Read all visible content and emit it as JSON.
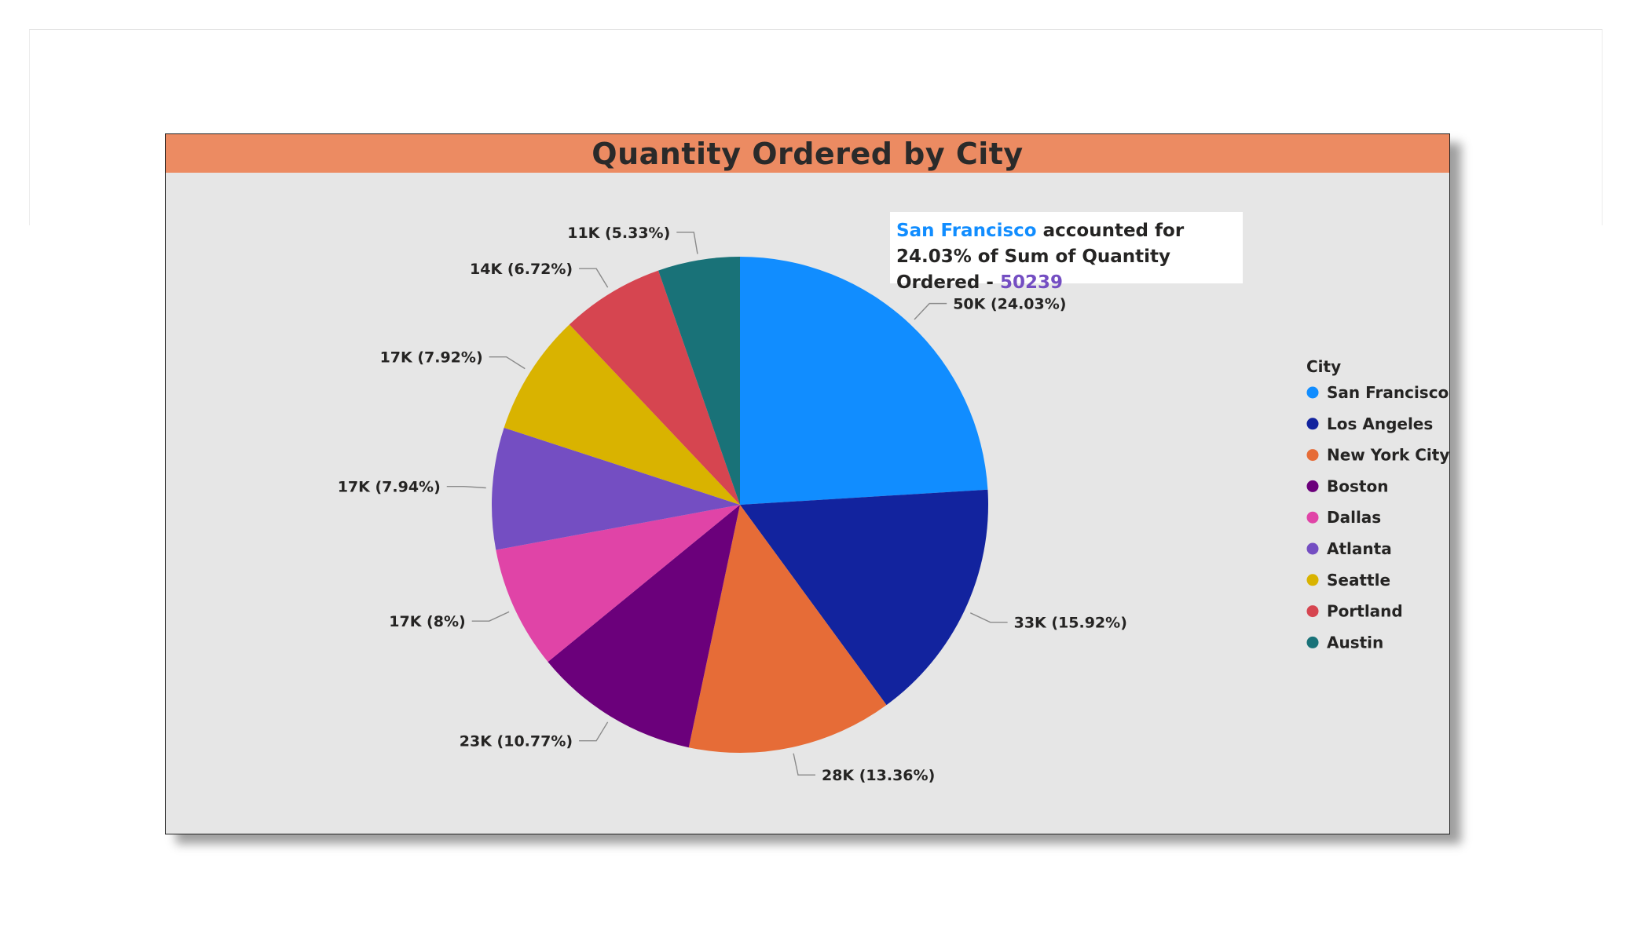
{
  "chart_data": {
    "type": "pie",
    "title": "Quantity Ordered by City",
    "legend_title": "City",
    "legend_position": "right",
    "categories": [
      "San Francisco",
      "Los Angeles",
      "New York City",
      "Boston",
      "Dallas",
      "Atlanta",
      "Seattle",
      "Portland",
      "Austin"
    ],
    "values": [
      50239,
      33289,
      27932,
      22528,
      16730,
      16602,
      16553,
      14053,
      11153
    ],
    "percent_labels": [
      "24.03%",
      "15.92%",
      "13.36%",
      "10.77%",
      "8%",
      "7.94%",
      "7.92%",
      "6.72%",
      "5.33%"
    ],
    "data_labels": [
      "50K (24.03%)",
      "33K (15.92%)",
      "28K (13.36%)",
      "23K (10.77%)",
      "17K (8%)",
      "17K (7.94%)",
      "17K (7.92%)",
      "14K (6.72%)",
      "11K (5.33%)"
    ],
    "colors": [
      "#118dff",
      "#12239e",
      "#e66c37",
      "#6b007b",
      "#e044a7",
      "#744ec2",
      "#d9b300",
      "#d64550",
      "#197278"
    ]
  },
  "tooltip": {
    "city": "San Francisco",
    "middle": "accounted for 24.03% of Sum of Quantity Ordered -",
    "value": "50239"
  },
  "colors": {
    "title_bar": "#ec8b62",
    "plot_background": "#e6e6e6",
    "tooltip_value": "#744ec2"
  }
}
